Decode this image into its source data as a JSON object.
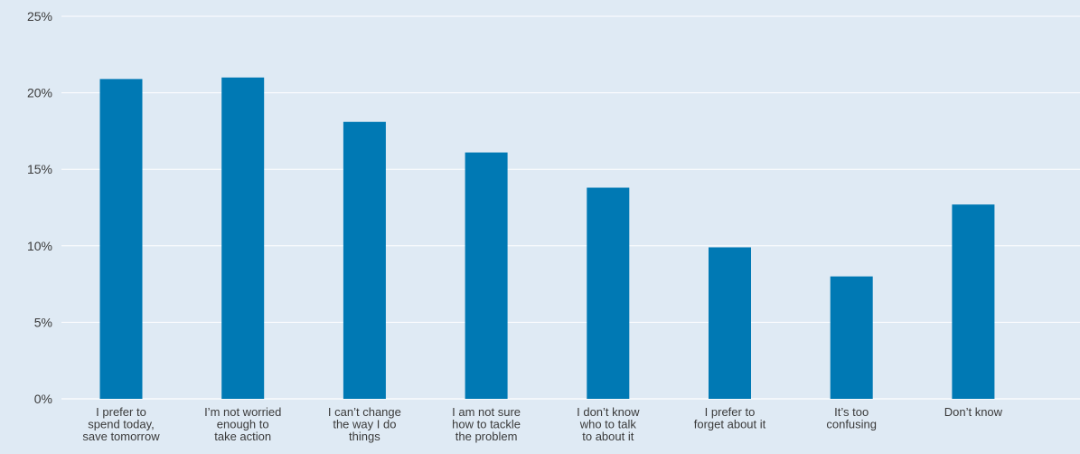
{
  "chart_data": {
    "type": "bar",
    "categories": [
      [
        "I prefer to",
        "spend today,",
        "save tomorrow"
      ],
      [
        "I’m not worried",
        "enough to",
        "take action"
      ],
      [
        "I can’t change",
        "the way I do",
        "things"
      ],
      [
        "I am not sure",
        "how to tackle",
        "the problem"
      ],
      [
        "I don’t know",
        "who to talk",
        "to about it"
      ],
      [
        "I prefer to",
        "forget about it"
      ],
      [
        "It’s too",
        "confusing"
      ],
      [
        "Don’t know"
      ]
    ],
    "values": [
      20.9,
      21.0,
      18.1,
      16.1,
      13.8,
      9.9,
      8.0,
      12.7
    ],
    "ylim": [
      0,
      25
    ],
    "yticks": [
      0,
      5,
      10,
      15,
      20,
      25
    ],
    "ytick_labels": [
      "0%",
      "5%",
      "10%",
      "15%",
      "20%",
      "25%"
    ],
    "grid": true,
    "colors": {
      "bar": "#0079b4",
      "background": "#dfeaf4",
      "grid": "#ffffff"
    }
  }
}
